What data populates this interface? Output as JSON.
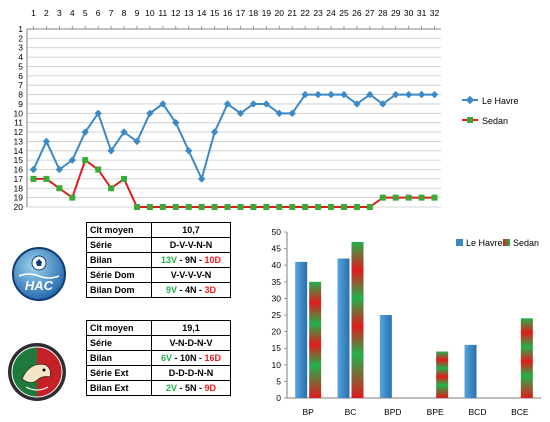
{
  "chart_data": [
    {
      "type": "line",
      "x": [
        1,
        2,
        3,
        4,
        5,
        6,
        7,
        8,
        9,
        10,
        11,
        12,
        13,
        14,
        15,
        16,
        17,
        18,
        19,
        20,
        21,
        22,
        23,
        24,
        25,
        26,
        27,
        28,
        29,
        30,
        31,
        32
      ],
      "x_ticks": [
        "1",
        "2",
        "3",
        "4",
        "5",
        "6",
        "7",
        "8",
        "9",
        "10",
        "11",
        "12",
        "13",
        "14",
        "15",
        "16",
        "17",
        "18",
        "19",
        "20",
        "21",
        "22",
        "23",
        "24",
        "25",
        "26",
        "27",
        "28",
        "29",
        "30",
        "31",
        "32"
      ],
      "y_ticks": [
        "1",
        "2",
        "3",
        "4",
        "5",
        "6",
        "7",
        "8",
        "9",
        "10",
        "11",
        "12",
        "13",
        "14",
        "15",
        "16",
        "17",
        "18",
        "19",
        "20"
      ],
      "ylim": [
        1,
        20
      ],
      "y_inverted": true,
      "x_axis_position": "top",
      "grid": "horizontal",
      "legend_position": "right",
      "series": [
        {
          "name": "Le Havre",
          "color": "#3d89c6",
          "marker": "diamond",
          "values": [
            16,
            13,
            16,
            15,
            12,
            10,
            14,
            12,
            13,
            10,
            9,
            11,
            14,
            17,
            12,
            9,
            10,
            9,
            9,
            10,
            10,
            8,
            8,
            8,
            8,
            9,
            8,
            9,
            8,
            8,
            8,
            8
          ]
        },
        {
          "name": "Sedan",
          "color": "#e01b1b",
          "marker_color": "#3aa935",
          "marker": "square",
          "values": [
            17,
            17,
            18,
            19,
            15,
            16,
            18,
            17,
            20,
            20,
            20,
            20,
            20,
            20,
            20,
            20,
            20,
            20,
            20,
            20,
            20,
            20,
            20,
            20,
            20,
            20,
            20,
            19,
            19,
            19,
            19,
            19
          ]
        }
      ]
    },
    {
      "type": "bar",
      "categories": [
        "BP",
        "BC",
        "BPD",
        "BPE",
        "BCD",
        "BCE"
      ],
      "ylim": [
        0,
        50
      ],
      "y_ticks": [
        "0",
        "5",
        "10",
        "15",
        "20",
        "25",
        "30",
        "35",
        "40",
        "45",
        "50"
      ],
      "legend_position": "top-right",
      "series": [
        {
          "name": "Le Havre",
          "color": "#3d89c6",
          "values": [
            41,
            42,
            25,
            0,
            16,
            0
          ]
        },
        {
          "name": "Sedan",
          "colors": [
            "#e01b1b",
            "#22b14c"
          ],
          "values": [
            35,
            47,
            0,
            14,
            0,
            24
          ]
        }
      ]
    }
  ],
  "team1_table": {
    "rows": [
      {
        "label": "Clt moyen",
        "value": "10,7"
      },
      {
        "label": "Série",
        "value": "D-V-V-N-N"
      },
      {
        "label": "Bilan",
        "v": "13V",
        "sep1": " - ",
        "n": "9N",
        "sep2": " - ",
        "d": "10D"
      },
      {
        "label": "Série Dom",
        "value": "V-V-V-V-N"
      },
      {
        "label": "Bilan Dom",
        "v": "9V",
        "sep1": " - ",
        "n": "4N",
        "sep2": " - ",
        "d": "3D"
      }
    ]
  },
  "team2_table": {
    "rows": [
      {
        "label": "Clt moyen",
        "value": "19,1"
      },
      {
        "label": "Série",
        "value": "V-N-D-N-V"
      },
      {
        "label": "Bilan",
        "v": "6V",
        "sep1": " - ",
        "n": "10N",
        "sep2": " - ",
        "d": "16D"
      },
      {
        "label": "Série Ext",
        "value": "D-D-D-N-N"
      },
      {
        "label": "Bilan Ext",
        "v": "2V",
        "sep1": " - ",
        "n": "5N",
        "sep2": " - ",
        "d": "9D"
      }
    ]
  },
  "logos": {
    "team1_text": "HAC",
    "team1_icon": "hac-club-crest",
    "team2_icon": "sedan-club-crest"
  },
  "colors": {
    "le_havre": "#3d89c6",
    "sedan_red": "#e01b1b",
    "sedan_green": "#22b14c",
    "axis": "#7f7f7f"
  }
}
